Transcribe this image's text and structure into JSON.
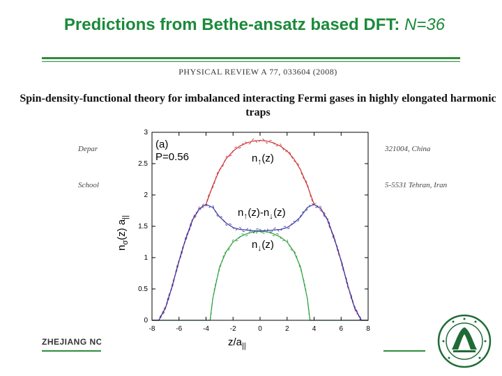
{
  "slide": {
    "title_prefix": "Predictions from Bethe-ansatz based DFT: ",
    "title_n": "N=36",
    "journal_ref": "PHYSICAL REVIEW A 77, 033604 (2008)",
    "paper_title": "Spin-density-functional theory for imbalanced interacting Fermi gases in highly elongated harmonic traps",
    "affiliation_left_1": "Depar",
    "affiliation_right_1": "321004, China",
    "affiliation_left_2": "School of I",
    "affiliation_right_2": "5-5531 Tehran, Iran",
    "footer": "ZHEJIANG NC",
    "colors": {
      "title": "#1b8a3a",
      "rule": "#2e8b3a",
      "logo": "#1f6b36"
    }
  },
  "chart_data": {
    "type": "line",
    "panel_label": "(a)",
    "parameter_label": "P=0.56",
    "xlabel_main": "z/a",
    "xlabel_sub": "||",
    "ylabel_main": "n",
    "ylabel_sub": "σ",
    "ylabel_rest": "(z) a",
    "ylabel_rest_sub": "||",
    "xlim": [
      -8,
      8
    ],
    "ylim": [
      0,
      3
    ],
    "xticks": [
      -8,
      -6,
      -4,
      -2,
      0,
      2,
      4,
      6,
      8
    ],
    "yticks": [
      0,
      0.5,
      1,
      1.5,
      2,
      2.5,
      3
    ],
    "annotations": {
      "up": {
        "base": "n",
        "arrow": "↑",
        "tail": "(z)"
      },
      "diff": {
        "base": "n",
        "arrow1": "↑",
        "mid": "(z)-n",
        "arrow2": "↓",
        "tail": "(z)"
      },
      "down": {
        "base": "n",
        "arrow": "↓",
        "tail": "(z)"
      }
    },
    "series": [
      {
        "id": "n_up",
        "color": "#cc3333",
        "x": [
          -8,
          -7.5,
          -7,
          -6.5,
          -6,
          -5.5,
          -5,
          -4.5,
          -4,
          -3.5,
          -3,
          -2.5,
          -2,
          -1.5,
          -1,
          -0.5,
          0,
          0.5,
          1,
          1.5,
          2,
          2.5,
          3,
          3.5,
          4,
          4.5,
          5,
          5.5,
          6,
          6.5,
          7,
          7.5,
          8
        ],
        "values": [
          0,
          0,
          0.2,
          0.55,
          0.95,
          1.3,
          1.6,
          1.78,
          1.85,
          2.15,
          2.4,
          2.58,
          2.7,
          2.78,
          2.83,
          2.86,
          2.87,
          2.86,
          2.83,
          2.78,
          2.7,
          2.58,
          2.4,
          2.15,
          1.85,
          1.78,
          1.6,
          1.3,
          0.95,
          0.55,
          0.2,
          0,
          0
        ]
      },
      {
        "id": "n_down",
        "color": "#2e9e3e",
        "x": [
          -8,
          -4,
          -3.7,
          -3.5,
          -3,
          -2.5,
          -2,
          -1.5,
          -1,
          -0.5,
          0,
          0.5,
          1,
          1.5,
          2,
          2.5,
          3,
          3.5,
          3.7,
          4,
          8
        ],
        "values": [
          0,
          0,
          0,
          0.35,
          0.85,
          1.1,
          1.25,
          1.33,
          1.38,
          1.41,
          1.42,
          1.41,
          1.38,
          1.33,
          1.25,
          1.1,
          0.85,
          0.35,
          0,
          0,
          0
        ]
      },
      {
        "id": "n_diff",
        "color": "#3a3aa8",
        "x": [
          -8,
          -7.5,
          -7,
          -6.5,
          -6,
          -5.5,
          -5,
          -4.5,
          -4,
          -3.5,
          -3,
          -2.5,
          -2,
          -1.5,
          -1,
          -0.5,
          0,
          0.5,
          1,
          1.5,
          2,
          2.5,
          3,
          3.5,
          4,
          4.5,
          5,
          5.5,
          6,
          6.5,
          7,
          7.5,
          8
        ],
        "values": [
          0,
          0,
          0.2,
          0.55,
          0.95,
          1.3,
          1.6,
          1.78,
          1.85,
          1.8,
          1.65,
          1.55,
          1.48,
          1.45,
          1.44,
          1.43,
          1.43,
          1.43,
          1.44,
          1.45,
          1.48,
          1.55,
          1.65,
          1.8,
          1.85,
          1.78,
          1.6,
          1.3,
          0.95,
          0.55,
          0.2,
          0,
          0
        ]
      }
    ]
  }
}
